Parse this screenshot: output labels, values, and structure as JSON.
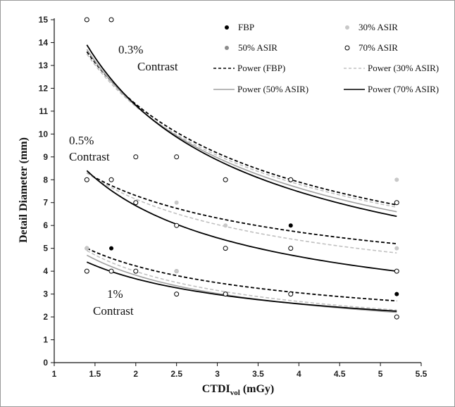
{
  "chart_data": {
    "type": "scatter",
    "title": "",
    "xlabel_main": "CTDI",
    "xlabel_sub": "vol",
    "xlabel_unit": " (mGy)",
    "ylabel": "Detail Diameter (mm)",
    "xlim": [
      1,
      5.5
    ],
    "ylim": [
      0,
      15
    ],
    "x_ticks": [
      "1",
      "1.5",
      "2",
      "2.5",
      "3",
      "3.5",
      "4",
      "4.5",
      "5",
      "5.5"
    ],
    "y_ticks": [
      "0",
      "1",
      "2",
      "3",
      "4",
      "5",
      "6",
      "7",
      "8",
      "9",
      "10",
      "11",
      "12",
      "13",
      "14",
      "15"
    ],
    "grid": false,
    "legend_position": "top-right",
    "annotations": [
      {
        "line1": "0.3%",
        "line2": "Contrast",
        "near_x": 1.85,
        "near_y": 13.5
      },
      {
        "line1": "0.5%",
        "line2": "Contrast",
        "near_x": 1.45,
        "near_y": 9.5
      },
      {
        "line1": "1%",
        "line2": "Contrast",
        "near_x": 1.9,
        "near_y": 2.5
      }
    ],
    "series": [
      {
        "name": "FBP",
        "kind": "points",
        "marker": "filled",
        "color": "#000000",
        "points": [
          [
            1.4,
            5
          ],
          [
            1.7,
            5
          ],
          [
            2,
            4
          ],
          [
            2.5,
            4
          ],
          [
            3.1,
            3
          ],
          [
            3.9,
            6
          ],
          [
            3.9,
            3
          ],
          [
            5.2,
            3
          ]
        ]
      },
      {
        "name": "30% ASIR",
        "kind": "points",
        "marker": "filled",
        "color": "#c8c8c8",
        "points": [
          [
            1.4,
            5
          ],
          [
            2.5,
            7
          ],
          [
            2.5,
            4
          ],
          [
            3.1,
            6
          ],
          [
            5.2,
            8
          ],
          [
            5.2,
            5
          ]
        ]
      },
      {
        "name": "50% ASIR",
        "kind": "points",
        "marker": "filled",
        "color": "#8c8c8c",
        "points": []
      },
      {
        "name": "70% ASIR",
        "kind": "points",
        "marker": "open",
        "color": "#000000",
        "points": [
          [
            1.4,
            15
          ],
          [
            1.7,
            15
          ],
          [
            1.4,
            8
          ],
          [
            1.7,
            8
          ],
          [
            2,
            9
          ],
          [
            2,
            7
          ],
          [
            2.5,
            9
          ],
          [
            2.5,
            6
          ],
          [
            3.1,
            8
          ],
          [
            3.1,
            5
          ],
          [
            3.9,
            8
          ],
          [
            3.9,
            5
          ],
          [
            5.2,
            7
          ],
          [
            5.2,
            4
          ],
          [
            1.4,
            4
          ],
          [
            1.7,
            4
          ],
          [
            2,
            4
          ],
          [
            2.5,
            3
          ],
          [
            3.1,
            3
          ],
          [
            3.9,
            3
          ],
          [
            5.2,
            2
          ]
        ]
      },
      {
        "name": "Power (FBP)",
        "kind": "curves",
        "style": "dashed",
        "color": "#000000",
        "curves": [
          {
            "group": "0.3%",
            "x_range": [
              1.4,
              5.2
            ],
            "y_at_start": 13.6,
            "y_at_end": 6.9
          },
          {
            "group": "0.5%",
            "x_range": [
              1.4,
              5.2
            ],
            "y_at_start": 8.3,
            "y_at_end": 5.2
          },
          {
            "group": "1%",
            "x_range": [
              1.4,
              5.2
            ],
            "y_at_start": 5.0,
            "y_at_end": 2.7
          }
        ]
      },
      {
        "name": "Power (30% ASIR)",
        "kind": "curves",
        "style": "dashed",
        "color": "#c0c0c0",
        "curves": [
          {
            "group": "0.3%",
            "x_range": [
              1.4,
              5.2
            ],
            "y_at_start": 13.5,
            "y_at_end": 6.8
          },
          {
            "group": "0.5%",
            "x_range": [
              1.4,
              5.2
            ],
            "y_at_start": 8.3,
            "y_at_end": 4.8
          },
          {
            "group": "1%",
            "x_range": [
              1.4,
              5.2
            ],
            "y_at_start": 4.9,
            "y_at_end": 2.3
          }
        ]
      },
      {
        "name": "Power (50% ASIR)",
        "kind": "curves",
        "style": "solid",
        "color": "#a0a0a0",
        "curves": [
          {
            "group": "0.3%",
            "x_range": [
              1.4,
              5.2
            ],
            "y_at_start": 13.7,
            "y_at_end": 6.6
          },
          {
            "group": "1%",
            "x_range": [
              1.4,
              5.2
            ],
            "y_at_start": 4.7,
            "y_at_end": 2.2
          }
        ]
      },
      {
        "name": "Power (70% ASIR)",
        "kind": "curves",
        "style": "solid",
        "color": "#000000",
        "curves": [
          {
            "group": "0.3%",
            "x_range": [
              1.4,
              5.2
            ],
            "y_at_start": 13.9,
            "y_at_end": 6.4
          },
          {
            "group": "0.5%",
            "x_range": [
              1.4,
              5.2
            ],
            "y_at_start": 8.4,
            "y_at_end": 4.0
          },
          {
            "group": "1%",
            "x_range": [
              1.4,
              5.2
            ],
            "y_at_start": 4.4,
            "y_at_end": 2.25
          }
        ]
      }
    ]
  }
}
